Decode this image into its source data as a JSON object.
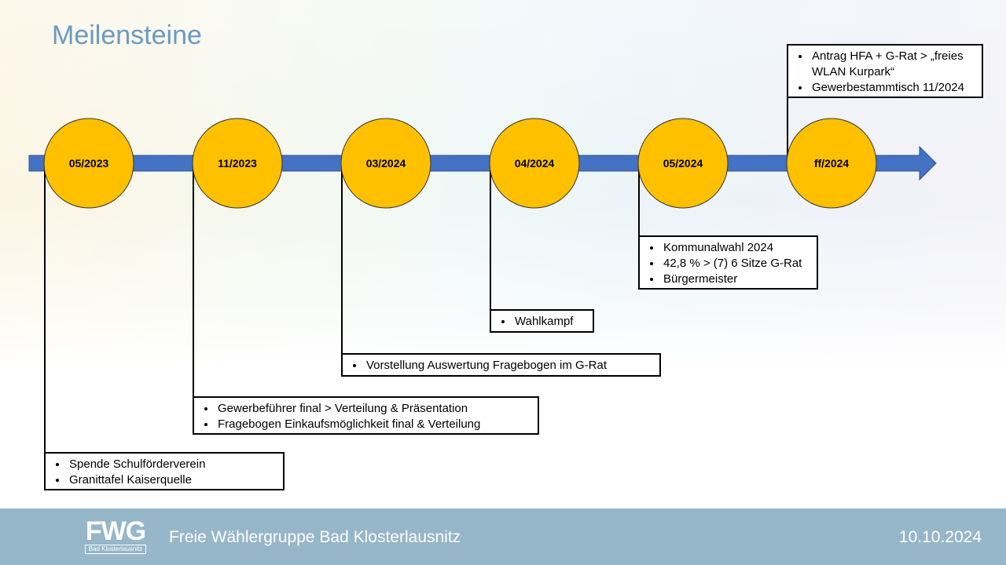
{
  "title": "Meilensteine",
  "milestones": [
    {
      "date": "05/2023",
      "items": [
        "Spende Schulförderverein",
        "Granittafel Kaiserquelle"
      ]
    },
    {
      "date": "11/2023",
      "items": [
        "Gewerbeführer final > Verteilung & Präsentation",
        "Fragebogen Einkaufsmöglichkeit final & Verteilung"
      ]
    },
    {
      "date": "03/2024",
      "items": [
        "Vorstellung Auswertung Fragebogen im G-Rat"
      ]
    },
    {
      "date": "04/2024",
      "items": [
        "Wahlkampf"
      ]
    },
    {
      "date": "05/2024",
      "items": [
        "Kommunalwahl 2024",
        "42,8 % > (7) 6 Sitze G-Rat",
        "Bürgermeister"
      ]
    },
    {
      "date": "ff/2024",
      "items": [
        "Antrag HFA + G-Rat > „freies WLAN Kurpark“",
        "Gewerbestammtisch 11/2024"
      ]
    }
  ],
  "footer": {
    "logo": "FWG",
    "logo_sub": "Bad Klosterlausnitz",
    "organization": "Freie Wählergruppe Bad Klosterlausnitz",
    "date": "10.10.2024"
  }
}
